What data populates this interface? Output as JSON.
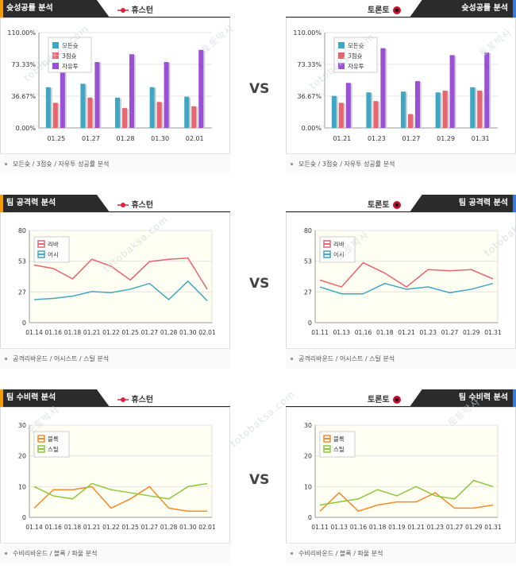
{
  "vs_label": "VS",
  "teams": {
    "left": "휴스턴",
    "right": "토론토"
  },
  "watermark": "totobaksa.com",
  "watermark_kr": "토토박사",
  "colors": {
    "dark": "#2b2b2b",
    "accent_orange": "#f39c12",
    "accent_blue": "#3a7bd5",
    "rebound": "#e8646e",
    "assist": "#3ea7c5",
    "block": "#f58a2a",
    "steal": "#8bc93a",
    "purple": "#9b4fd6",
    "plot_bg": "#fffef2"
  },
  "panels": [
    {
      "id": "shoot-left",
      "title": "슛성공률 분석",
      "team": "휴스턴",
      "side": "left",
      "footer": "모든슛 / 3점슛 / 자유투 성공률 분석",
      "chart_data": {
        "type": "bar",
        "categories": [
          "01.25",
          "01.27",
          "01.28",
          "01.30",
          "02.01"
        ],
        "series": [
          {
            "name": "모든슛",
            "values": [
              47,
              51,
              35,
              47,
              36
            ]
          },
          {
            "name": "3점슛",
            "values": [
              29,
              35,
              23,
              30,
              25
            ]
          },
          {
            "name": "자유투",
            "values": [
              73,
              76,
              85,
              76,
              90
            ]
          }
        ],
        "ylim": [
          0,
          110
        ],
        "yticks": [
          "0.00%",
          "36.67%",
          "73.33%",
          "110.00%"
        ]
      }
    },
    {
      "id": "shoot-right",
      "title": "슛성공률 분석",
      "team": "토론토",
      "side": "right",
      "footer": "모든슛 / 3점슛 / 자유투 성공률 분석",
      "chart_data": {
        "type": "bar",
        "categories": [
          "01.21",
          "01.23",
          "01.27",
          "01.29",
          "01.31"
        ],
        "series": [
          {
            "name": "모든슛",
            "values": [
              37,
              41,
              42,
              41,
              47
            ]
          },
          {
            "name": "3점슛",
            "values": [
              29,
              31,
              16,
              43,
              43
            ]
          },
          {
            "name": "자유투",
            "values": [
              52,
              92,
              54,
              84,
              87
            ]
          }
        ],
        "ylim": [
          0,
          110
        ],
        "yticks": [
          "0.00%",
          "36.67%",
          "73.33%",
          "110.00%"
        ]
      }
    },
    {
      "id": "attack-left",
      "title": "팀 공격력 분석",
      "team": "휴스턴",
      "side": "left",
      "footer": "공격리바운드 / 어시스트 / 스틸 분석",
      "chart_data": {
        "type": "line",
        "categories": [
          "01.14",
          "01.16",
          "01.18",
          "01.21",
          "01.22",
          "01.25",
          "01.27",
          "01.28",
          "01.30",
          "02.01"
        ],
        "series": [
          {
            "name": "리바",
            "values": [
              50,
              47,
              38,
              55,
              49,
              37,
              53,
              55,
              56,
              29
            ]
          },
          {
            "name": "어시",
            "values": [
              20,
              21,
              23,
              27,
              26,
              29,
              34,
              20,
              36,
              19
            ]
          }
        ],
        "ylim": [
          0,
          80
        ],
        "yticks": [
          "0",
          "27",
          "53",
          "80"
        ]
      }
    },
    {
      "id": "attack-right",
      "title": "팀 공격력 분석",
      "team": "토론토",
      "side": "right",
      "footer": "공격리바운드 / 어시스트 / 스틸 분석",
      "chart_data": {
        "type": "line",
        "categories": [
          "01.11",
          "01.13",
          "01.16",
          "01.18",
          "01.21",
          "01.23",
          "01.27",
          "01.29",
          "01.31"
        ],
        "series": [
          {
            "name": "리바",
            "values": [
              37,
              31,
              52,
              43,
              31,
              46,
              45,
              46,
              38
            ]
          },
          {
            "name": "어시",
            "values": [
              31,
              25,
              25,
              34,
              29,
              31,
              26,
              29,
              34
            ]
          }
        ],
        "ylim": [
          0,
          80
        ],
        "yticks": [
          "0",
          "27",
          "53",
          "80"
        ]
      }
    },
    {
      "id": "defense-left",
      "title": "팀 수비력 분석",
      "team": "휴스턴",
      "side": "left",
      "footer": "수비리바운드 / 블록 / 파울 분석",
      "chart_data": {
        "type": "line",
        "categories": [
          "01.14",
          "01.16",
          "01.18",
          "01.21",
          "01.22",
          "01.25",
          "01.27",
          "01.28",
          "01.30",
          "02.01"
        ],
        "series": [
          {
            "name": "블록",
            "values": [
              3,
              9,
              9,
              10,
              3,
              6,
              10,
              3,
              2,
              2
            ]
          },
          {
            "name": "스틸",
            "values": [
              10,
              7,
              6,
              11,
              9,
              8,
              7,
              6,
              10,
              11
            ]
          }
        ],
        "ylim": [
          0,
          30
        ],
        "yticks": [
          "0",
          "10",
          "20",
          "30"
        ]
      }
    },
    {
      "id": "defense-right",
      "title": "팀 수비력 분석",
      "team": "토론토",
      "side": "right",
      "footer": "수비리바운드 / 블록 / 파울 분석",
      "chart_data": {
        "type": "line",
        "categories": [
          "01.11",
          "01.13",
          "01.16",
          "01.18",
          "01.19",
          "01.21",
          "01.23",
          "01.27",
          "01.29",
          "01.31"
        ],
        "series": [
          {
            "name": "블록",
            "values": [
              2,
              8,
              2,
              4,
              5,
              5,
              8,
              3,
              3,
              4
            ]
          },
          {
            "name": "스틸",
            "values": [
              4,
              5,
              6,
              9,
              7,
              10,
              7,
              6,
              12,
              10
            ]
          }
        ],
        "ylim": [
          0,
          30
        ],
        "yticks": [
          "0",
          "10",
          "20",
          "30"
        ]
      }
    }
  ]
}
